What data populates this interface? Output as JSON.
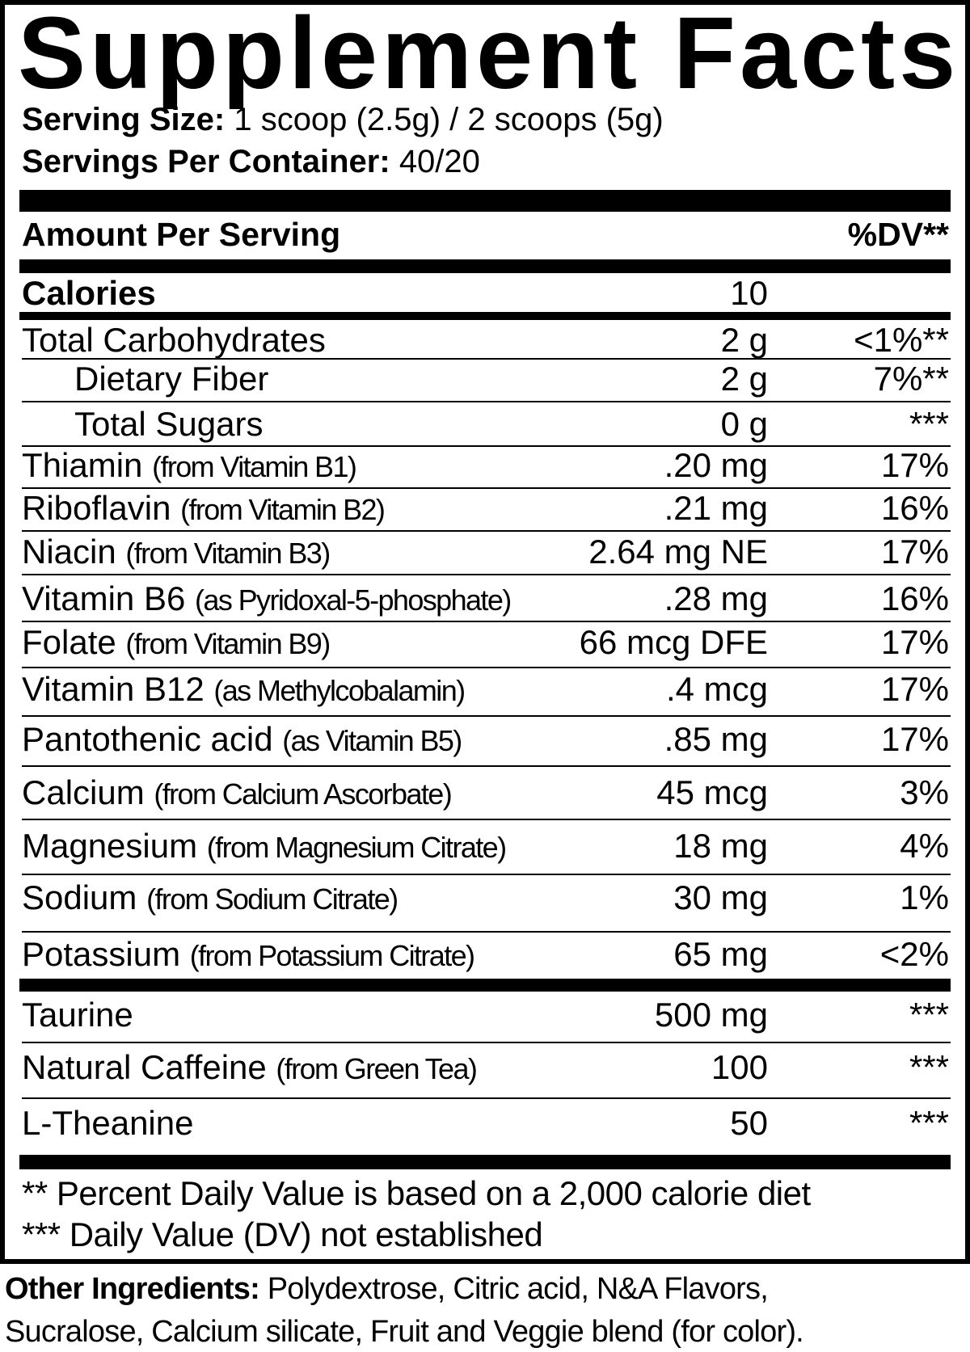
{
  "title": "Supplement Facts",
  "serving_size": {
    "label": "Serving Size:",
    "value": "1 scoop (2.5g) / 2 scoops (5g)"
  },
  "servings_per_container": {
    "label": "Servings Per Container:",
    "value": "40/20"
  },
  "header": {
    "amount_label": "Amount Per Serving",
    "dv_label": "%DV**"
  },
  "calories": {
    "label": "Calories",
    "amount": "10"
  },
  "nutrients": [
    {
      "name": "Total Carbohydrates",
      "source": "",
      "amount": "2 g",
      "dv": "<1%**"
    },
    {
      "name": "Dietary Fiber",
      "source": "",
      "amount": "2 g",
      "dv": "7%**"
    },
    {
      "name": "Total Sugars",
      "source": "",
      "amount": "0 g",
      "dv": "***"
    },
    {
      "name": "Thiamin",
      "source": "(from Vitamin B1)",
      "amount": ".20 mg",
      "dv": "17%"
    },
    {
      "name": "Riboflavin",
      "source": "(from Vitamin B2)",
      "amount": ".21 mg",
      "dv": "16%"
    },
    {
      "name": "Niacin",
      "source": "(from Vitamin B3)",
      "amount": "2.64 mg NE",
      "dv": "17%"
    },
    {
      "name": "Vitamin B6",
      "source": "(as Pyridoxal-5-phosphate)",
      "amount": ".28 mg",
      "dv": "16%"
    },
    {
      "name": "Folate",
      "source": "(from Vitamin B9)",
      "amount": "66 mcg DFE",
      "dv": "17%"
    },
    {
      "name": "Vitamin B12",
      "source": "(as Methylcobalamin)",
      "amount": ".4 mcg",
      "dv": "17%"
    },
    {
      "name": "Pantothenic acid",
      "source": "(as Vitamin B5)",
      "amount": ".85 mg",
      "dv": "17%"
    },
    {
      "name": "Calcium",
      "source": "(from Calcium Ascorbate)",
      "amount": "45 mcg",
      "dv": "3%"
    },
    {
      "name": "Magnesium",
      "source": "(from Magnesium Citrate)",
      "amount": "18 mg",
      "dv": "4%"
    },
    {
      "name": "Sodium",
      "source": "(from Sodium Citrate)",
      "amount": "30 mg",
      "dv": "1%"
    },
    {
      "name": "Potassium",
      "source": "(from Potassium Citrate)",
      "amount": "65 mg",
      "dv": "<2%"
    },
    {
      "name": "Taurine",
      "source": "",
      "amount": "500 mg",
      "dv": "***"
    },
    {
      "name": "Natural Caffeine",
      "source": "(from Green Tea)",
      "amount": "100",
      "dv": "***"
    },
    {
      "name": "L-Theanine",
      "source": "",
      "amount": "50",
      "dv": "***"
    }
  ],
  "footnotes": [
    "** Percent Daily Value is based on a 2,000 calorie diet",
    "*** Daily Value (DV) not established"
  ],
  "other_ingredients": {
    "label": "Other Ingredients:",
    "line1": "Polydextrose, Citric acid, N&A Flavors,",
    "line2": "Sucralose, Calcium silicate, Fruit and Veggie blend (for color)."
  }
}
